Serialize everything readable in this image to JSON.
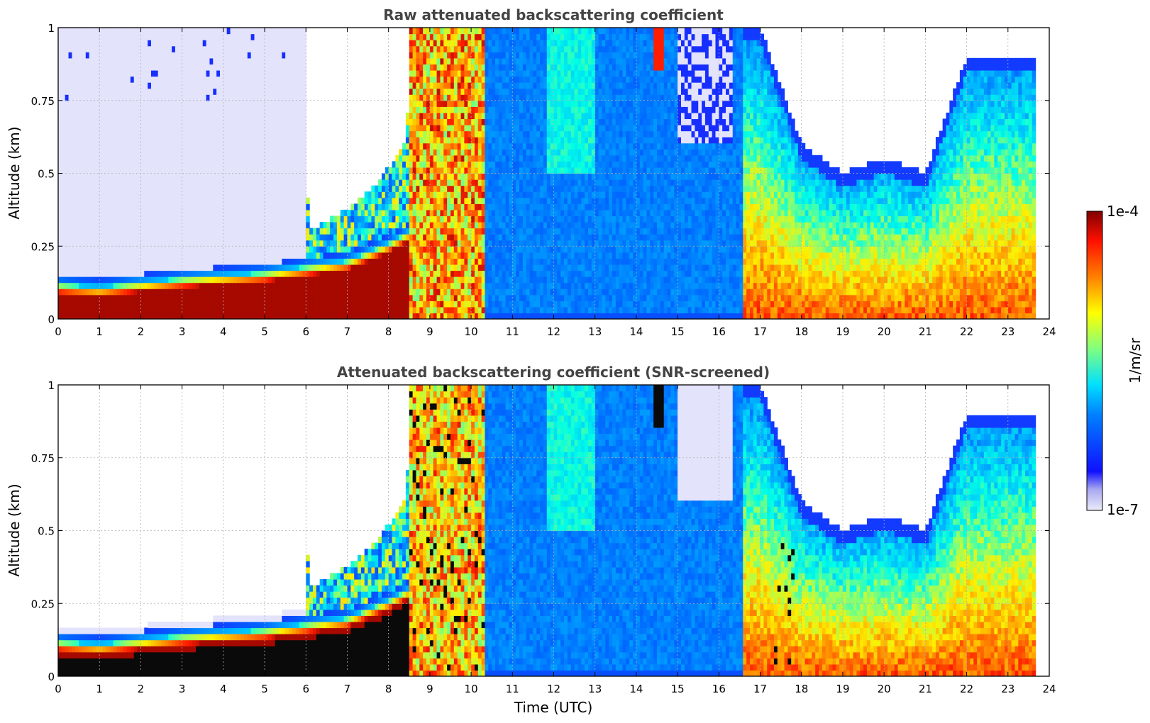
{
  "chart_data": [
    {
      "type": "heatmap",
      "title": "Raw attenuated backscattering coefficient",
      "xlabel": "",
      "ylabel": "Altitude (km)",
      "xlim": [
        0,
        24
      ],
      "ylim": [
        0,
        1
      ],
      "x_ticks": [
        0,
        1,
        2,
        3,
        4,
        5,
        6,
        7,
        8,
        9,
        10,
        11,
        12,
        13,
        14,
        15,
        16,
        17,
        18,
        19,
        20,
        21,
        22,
        23,
        24
      ],
      "y_ticks": [
        0,
        0.25,
        0.5,
        0.75,
        1
      ],
      "y_tick_labels": [
        "0",
        "0.25",
        "0.5",
        "0.75",
        "1"
      ],
      "grid": true,
      "screened": false
    },
    {
      "type": "heatmap",
      "title": "Attenuated backscattering coefficient (SNR-screened)",
      "xlabel": "Time (UTC)",
      "ylabel": "Altitude (km)",
      "xlim": [
        0,
        24
      ],
      "ylim": [
        0,
        1
      ],
      "x_ticks": [
        0,
        1,
        2,
        3,
        4,
        5,
        6,
        7,
        8,
        9,
        10,
        11,
        12,
        13,
        14,
        15,
        16,
        17,
        18,
        19,
        20,
        21,
        22,
        23,
        24
      ],
      "y_ticks": [
        0,
        0.25,
        0.5,
        0.75,
        1
      ],
      "y_tick_labels": [
        "0",
        "0.25",
        "0.5",
        "0.75",
        "1"
      ],
      "grid": true,
      "screened": true
    }
  ],
  "colorbar": {
    "label": "1/m/sr",
    "max_label": "1e-4",
    "min_label": "1e-7",
    "colormap": "jet",
    "low_color": "#e3e3fb",
    "saturated_color": "#0a0a0a"
  }
}
